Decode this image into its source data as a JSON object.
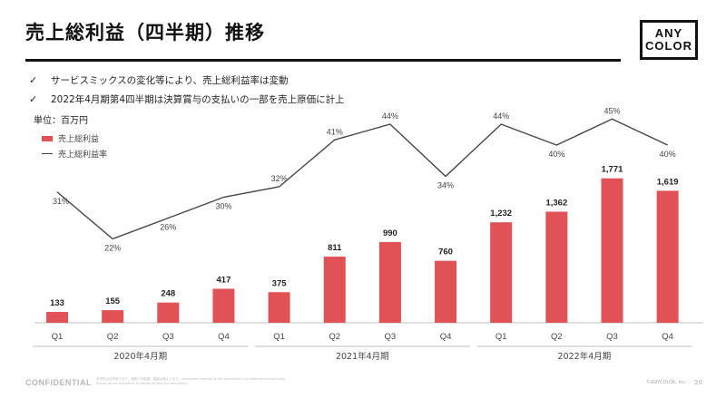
{
  "header": {
    "title": "売上総利益（四半期）推移"
  },
  "logo": {
    "line1": "ANY",
    "line2": "COLOR"
  },
  "bullets": [
    {
      "mark": "✓",
      "text": "サービスミックスの変化等により、売上総利益率は変動"
    },
    {
      "mark": "✓",
      "text": "2022年4月期第4四半期は決算賞与の支払いの一部を売上原価に計上"
    }
  ],
  "unit_label": "単位：百万円",
  "legend": {
    "bar": "売上総利益",
    "line": "売上総利益率"
  },
  "colors": {
    "bar": "#e05255",
    "line": "#444444",
    "axis": "#bfbfbf"
  },
  "chart_data": {
    "type": "bar",
    "title": "売上総利益（四半期）推移",
    "categories": [
      "Q1",
      "Q2",
      "Q3",
      "Q4",
      "Q1",
      "Q2",
      "Q3",
      "Q4",
      "Q1",
      "Q2",
      "Q3",
      "Q4"
    ],
    "groups": [
      {
        "label": "2020年4月期",
        "from": 0,
        "to": 3
      },
      {
        "label": "2021年4月期",
        "from": 4,
        "to": 7
      },
      {
        "label": "2022年4月期",
        "from": 8,
        "to": 11
      }
    ],
    "series": [
      {
        "name": "売上総利益",
        "kind": "bar",
        "values": [
          133,
          155,
          248,
          417,
          375,
          811,
          990,
          760,
          1232,
          1362,
          1771,
          1619
        ],
        "labels": [
          "133",
          "155",
          "248",
          "417",
          "375",
          "811",
          "990",
          "760",
          "1,232",
          "1,362",
          "1,771",
          "1,619"
        ]
      },
      {
        "name": "売上総利益率",
        "kind": "line",
        "unit": "%",
        "values": [
          31,
          22,
          26,
          30,
          32,
          41,
          44,
          34,
          44,
          40,
          45,
          40
        ]
      }
    ],
    "ylim": [
      0,
      2000
    ],
    "line_ylim": [
      0,
      50
    ]
  },
  "footer": {
    "confidential": "CONFIDENTIAL",
    "note": "本資料は社外秘であり、無断での転載・複製は禁止します。Accessible material to the document is confidential and privately. Please do not reproduce or distribute with out permission.",
    "copyright": "©ANYCOLOR, Inc.",
    "page": "20"
  }
}
